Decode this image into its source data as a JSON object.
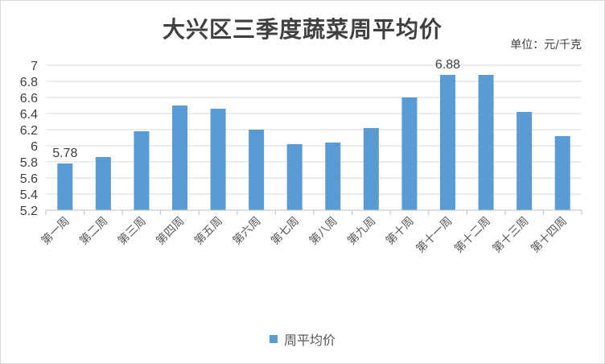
{
  "chart_data": {
    "type": "bar",
    "title": "大兴区三季度蔬菜周平均价",
    "unit": "单位：元/千克",
    "categories": [
      "第一周",
      "第二周",
      "第三周",
      "第四周",
      "第五周",
      "第六周",
      "第七周",
      "第八周",
      "第九周",
      "第十周",
      "第十一周",
      "第十二周",
      "第十三周",
      "第十四周"
    ],
    "series": [
      {
        "name": "周平均价",
        "values": [
          5.78,
          5.86,
          6.18,
          6.5,
          6.46,
          6.2,
          6.02,
          6.04,
          6.22,
          6.6,
          6.88,
          6.88,
          6.42,
          6.12
        ],
        "color": "#5b9bd5"
      }
    ],
    "data_labels": [
      {
        "index": 0,
        "text": "5.78"
      },
      {
        "index": 10,
        "text": "6.88"
      }
    ],
    "ylim": [
      5.2,
      7
    ],
    "yticks": [
      "5.2",
      "5.4",
      "5.6",
      "5.8",
      "6",
      "6.2",
      "6.4",
      "6.6",
      "6.8",
      "7"
    ],
    "xlabel": "",
    "ylabel": "",
    "legend_position": "bottom",
    "grid": true,
    "grid_color": "#d9d9d9"
  }
}
